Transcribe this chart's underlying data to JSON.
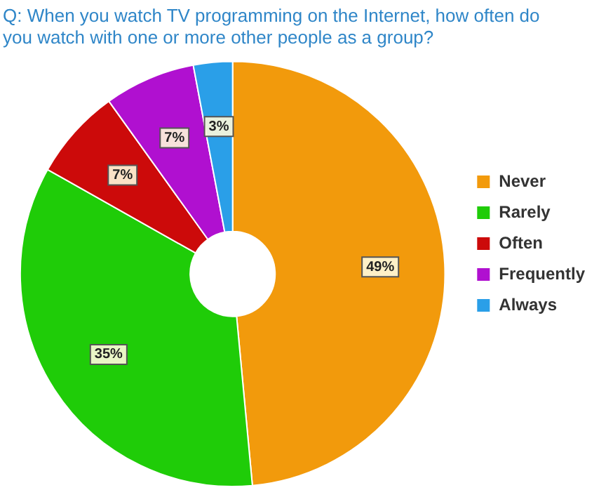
{
  "chart_data": {
    "type": "donut",
    "title": "Q: When you watch TV programming on the Internet, how often do you watch with one or more other people as a group?",
    "categories": [
      "Never",
      "Rarely",
      "Often",
      "Frequently",
      "Always"
    ],
    "values": [
      49,
      35,
      7,
      7,
      3
    ],
    "colors": [
      "#f29a0c",
      "#1fcc08",
      "#cc0a0a",
      "#b010d0",
      "#2a9fe8"
    ],
    "value_labels": [
      "49%",
      "35%",
      "7%",
      "7%",
      "3%"
    ],
    "legend": "right"
  }
}
